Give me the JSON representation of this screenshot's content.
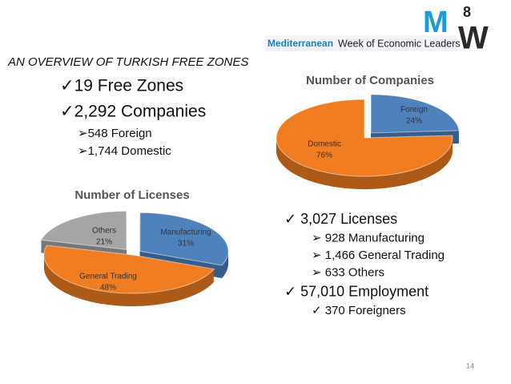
{
  "logo": {
    "mark_top": "M",
    "mark_number": "8",
    "mark_bottom": "W",
    "name_colored": "Mediterranean",
    "name_rest": "Week of Economic Leaders"
  },
  "heading": "AN OVERVIEW OF TURKISH FREE ZONES",
  "left_list": [
    {
      "text": "✓19 Free Zones"
    },
    {
      "text": "✓2,292 Companies",
      "items": [
        "➢548 Foreign",
        "➢1,744 Domestic"
      ]
    }
  ],
  "right_list": [
    {
      "text": "✓ 3,027 Licenses",
      "items": [
        "➢ 928 Manufacturing",
        "➢ 1,466 General Trading",
        "➢ 633 Others"
      ]
    },
    {
      "text": "✓ 57,010 Employment",
      "items": [
        "✓ 370 Foreigners"
      ]
    }
  ],
  "page_number": "14",
  "chart_data": [
    {
      "type": "pie",
      "title": "Number of Companies",
      "categories": [
        "Foreign",
        "Domestic"
      ],
      "values": [
        24,
        76
      ],
      "value_labels": [
        "24%",
        "76%"
      ],
      "colors": [
        "#4f81bd",
        "#f07d22"
      ],
      "explode": [
        true,
        false
      ]
    },
    {
      "type": "pie",
      "title": "Number of Licenses",
      "categories": [
        "Manufacturing",
        "General Trading",
        "Others"
      ],
      "values": [
        31,
        48,
        21
      ],
      "value_labels": [
        "31%",
        "48%",
        "21%"
      ],
      "colors": [
        "#4f81bd",
        "#f07d22",
        "#a5a5a5"
      ],
      "explode": [
        true,
        false,
        true
      ]
    }
  ]
}
